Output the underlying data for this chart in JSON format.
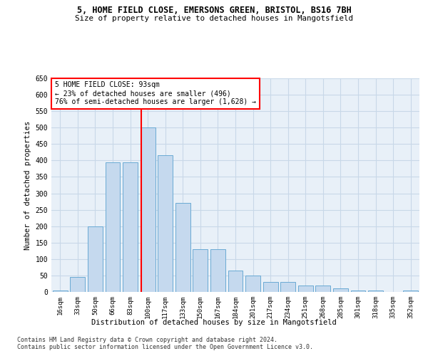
{
  "title_line1": "5, HOME FIELD CLOSE, EMERSONS GREEN, BRISTOL, BS16 7BH",
  "title_line2": "Size of property relative to detached houses in Mangotsfield",
  "xlabel": "Distribution of detached houses by size in Mangotsfield",
  "ylabel": "Number of detached properties",
  "bar_labels": [
    "16sqm",
    "33sqm",
    "50sqm",
    "66sqm",
    "83sqm",
    "100sqm",
    "117sqm",
    "133sqm",
    "150sqm",
    "167sqm",
    "184sqm",
    "201sqm",
    "217sqm",
    "234sqm",
    "251sqm",
    "268sqm",
    "285sqm",
    "301sqm",
    "318sqm",
    "335sqm",
    "352sqm"
  ],
  "bar_values": [
    5,
    45,
    200,
    395,
    395,
    500,
    415,
    270,
    130,
    130,
    65,
    50,
    30,
    30,
    20,
    20,
    10,
    5,
    5,
    0,
    5
  ],
  "bar_color": "#c5d9ee",
  "bar_edgecolor": "#6aaad4",
  "grid_color": "#c8d8e8",
  "background_color": "#e8f0f8",
  "annotation_text": "5 HOME FIELD CLOSE: 93sqm\n← 23% of detached houses are smaller (496)\n76% of semi-detached houses are larger (1,628) →",
  "annotation_box_facecolor": "white",
  "annotation_box_edgecolor": "red",
  "red_line_xindex": 4.62,
  "footer_line1": "Contains HM Land Registry data © Crown copyright and database right 2024.",
  "footer_line2": "Contains public sector information licensed under the Open Government Licence v3.0.",
  "ylim": [
    0,
    650
  ],
  "yticks": [
    0,
    50,
    100,
    150,
    200,
    250,
    300,
    350,
    400,
    450,
    500,
    550,
    600,
    650
  ]
}
